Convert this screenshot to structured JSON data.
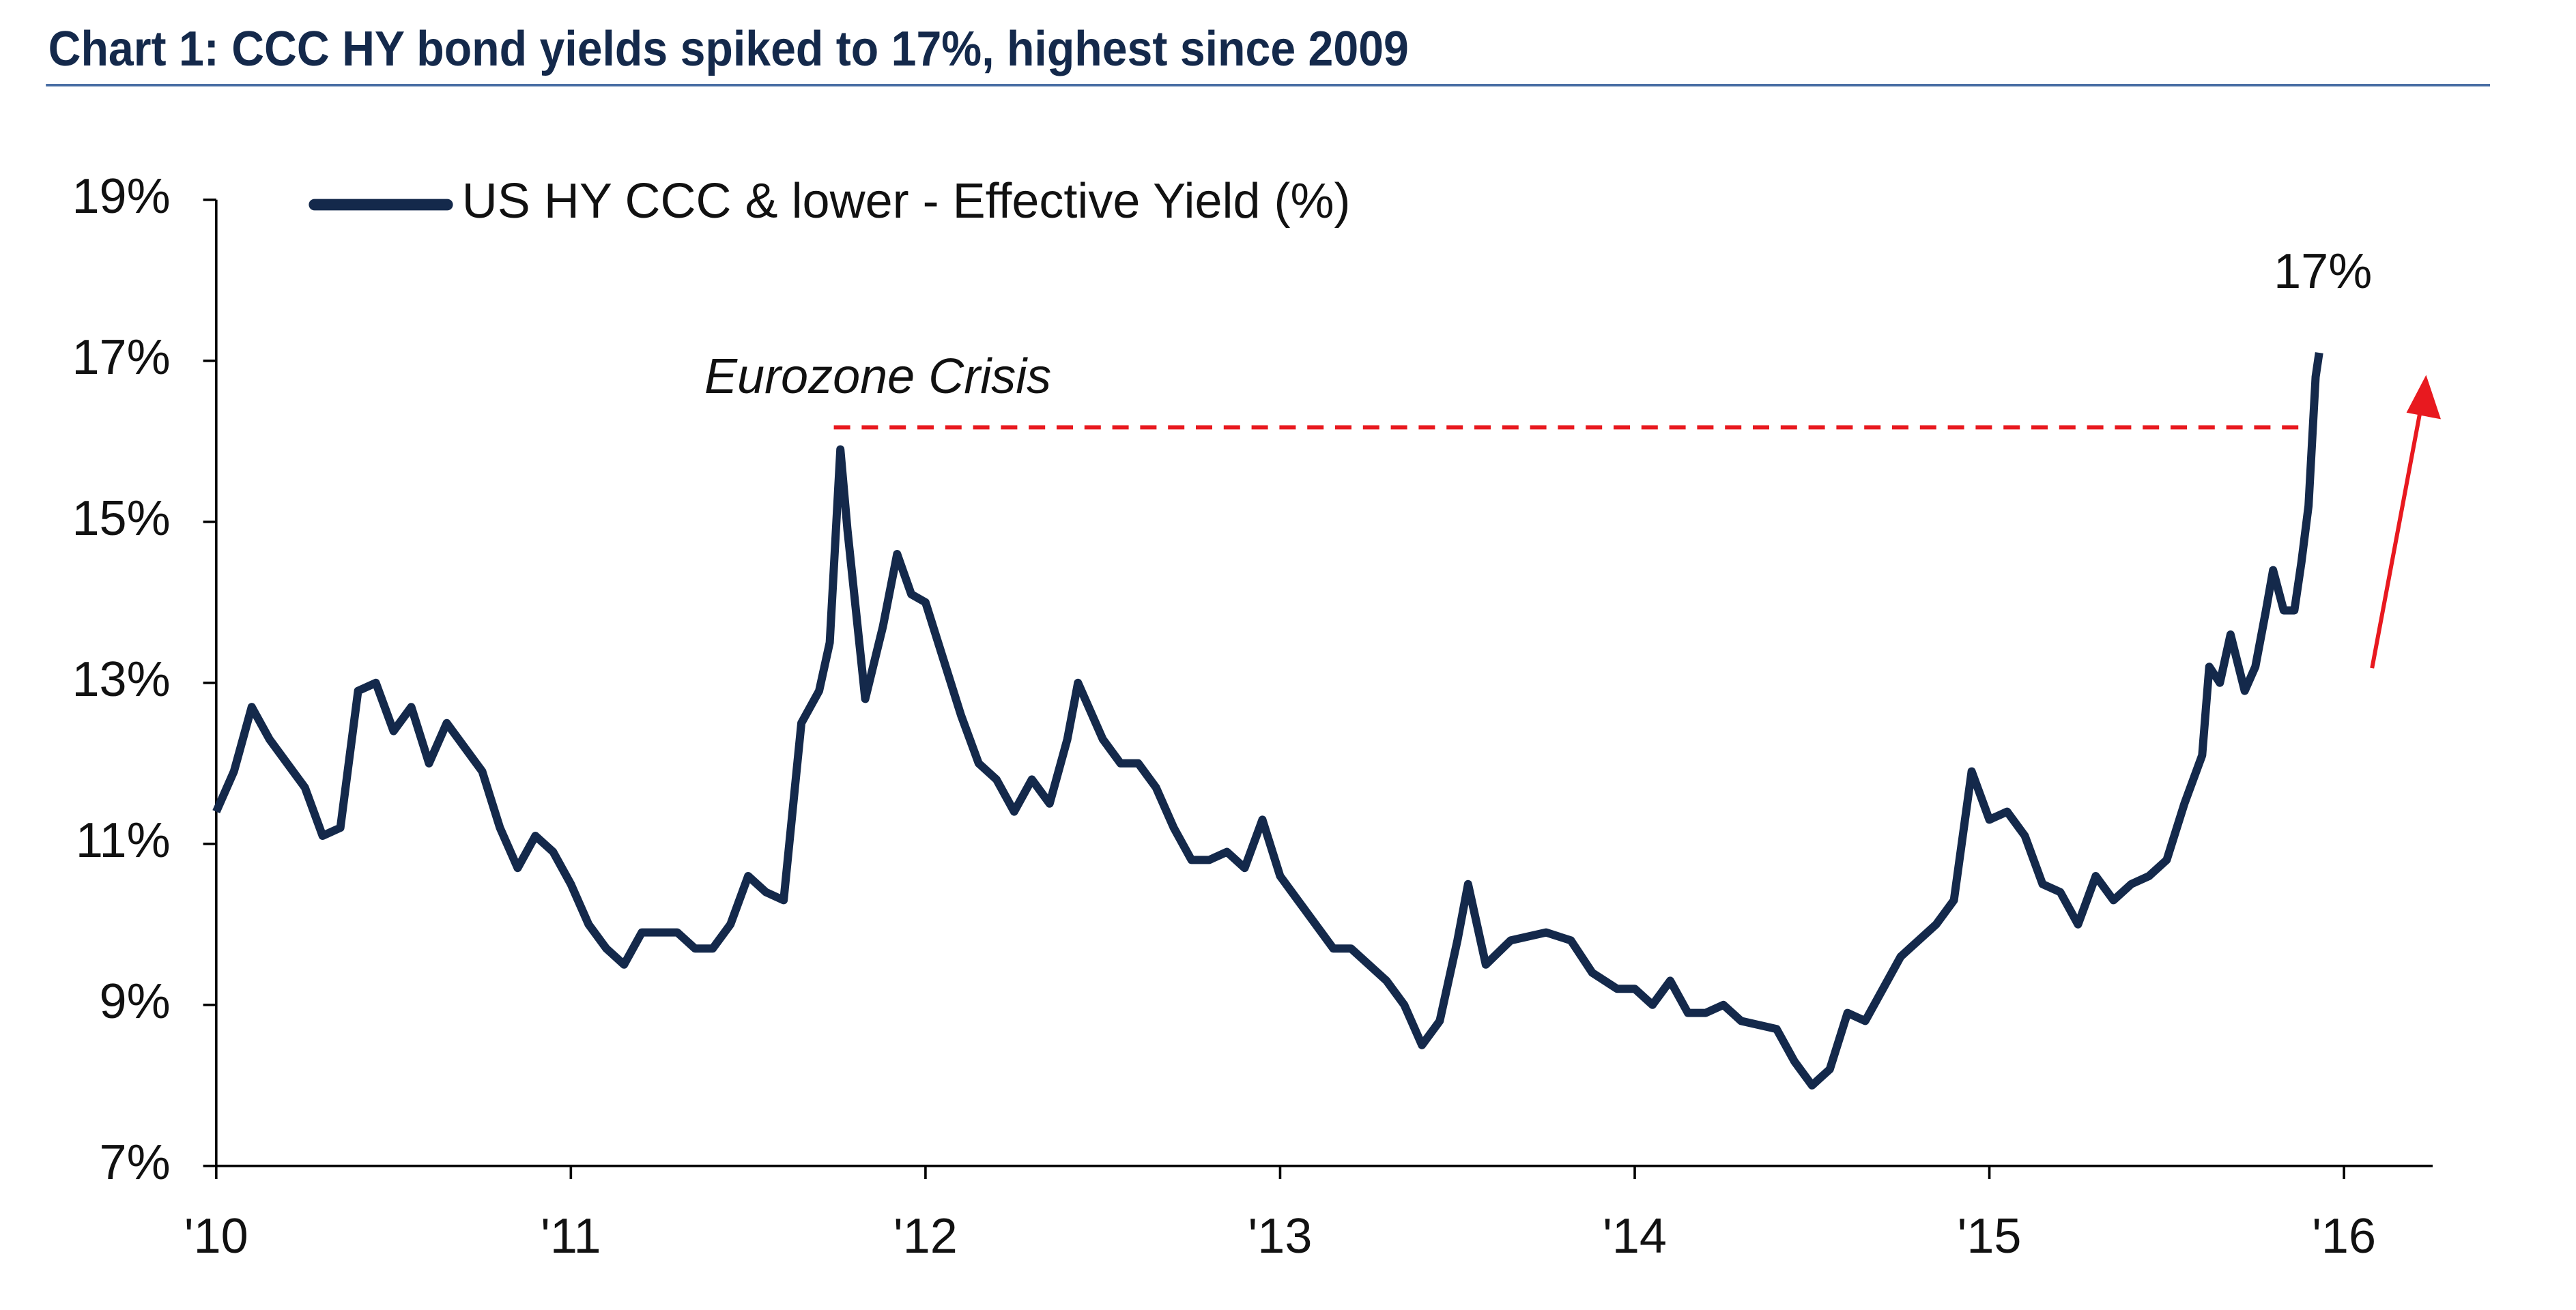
{
  "chart_data": {
    "type": "line",
    "title": "Chart 1:  CCC HY bond yields spiked to 17%, highest since 2009",
    "annotations": [
      "Eurozone Crisis",
      "17%"
    ],
    "x": [
      2010.0,
      2010.05,
      2010.1,
      2010.15,
      2010.25,
      2010.3,
      2010.35,
      2010.4,
      2010.45,
      2010.5,
      2010.55,
      2010.6,
      2010.65,
      2010.75,
      2010.8,
      2010.85,
      2010.9,
      2010.95,
      2011.0,
      2011.05,
      2011.1,
      2011.15,
      2011.2,
      2011.3,
      2011.35,
      2011.4,
      2011.45,
      2011.5,
      2011.55,
      2011.6,
      2011.65,
      2011.7,
      2011.73,
      2011.76,
      2011.78,
      2011.83,
      2011.88,
      2011.92,
      2011.96,
      2012.0,
      2012.05,
      2012.1,
      2012.15,
      2012.2,
      2012.25,
      2012.3,
      2012.35,
      2012.4,
      2012.43,
      2012.5,
      2012.55,
      2012.6,
      2012.65,
      2012.7,
      2012.75,
      2012.8,
      2012.85,
      2012.9,
      2012.95,
      2013.0,
      2013.05,
      2013.1,
      2013.15,
      2013.2,
      2013.25,
      2013.3,
      2013.35,
      2013.4,
      2013.45,
      2013.5,
      2013.53,
      2013.58,
      2013.65,
      2013.75,
      2013.82,
      2013.88,
      2013.95,
      2014.0,
      2014.05,
      2014.1,
      2014.15,
      2014.2,
      2014.25,
      2014.3,
      2014.4,
      2014.45,
      2014.5,
      2014.55,
      2014.6,
      2014.65,
      2014.7,
      2014.75,
      2014.8,
      2014.85,
      2014.9,
      2014.95,
      2015.0,
      2015.05,
      2015.1,
      2015.15,
      2015.2,
      2015.25,
      2015.3,
      2015.35,
      2015.4,
      2015.45,
      2015.5,
      2015.55,
      2015.6,
      2015.62,
      2015.65,
      2015.68,
      2015.72,
      2015.75,
      2015.78,
      2015.8,
      2015.83,
      2015.86,
      2015.88,
      2015.9,
      2015.91,
      2015.92,
      2015.93
    ],
    "series": [
      {
        "name": "US HY CCC & lower - Effective Yield (%)",
        "color": "#14294b",
        "values": [
          11.4,
          11.9,
          12.7,
          12.3,
          11.7,
          11.1,
          11.2,
          12.9,
          13.0,
          12.4,
          12.7,
          12.0,
          12.5,
          11.9,
          11.2,
          10.7,
          11.1,
          10.9,
          10.5,
          10.0,
          9.7,
          9.5,
          9.9,
          9.9,
          9.7,
          9.7,
          10.0,
          10.6,
          10.4,
          10.3,
          12.5,
          12.9,
          13.5,
          15.9,
          14.9,
          12.8,
          13.7,
          14.6,
          14.1,
          14.0,
          13.3,
          12.6,
          12.0,
          11.8,
          11.4,
          11.8,
          11.5,
          12.3,
          13.0,
          12.3,
          12.0,
          12.0,
          11.7,
          11.2,
          10.8,
          10.8,
          10.9,
          10.7,
          11.3,
          10.6,
          10.3,
          10.0,
          9.7,
          9.7,
          9.5,
          9.3,
          9.0,
          8.5,
          8.8,
          9.8,
          10.5,
          9.5,
          9.8,
          9.9,
          9.8,
          9.4,
          9.2,
          9.2,
          9.0,
          9.3,
          8.9,
          8.9,
          9.0,
          8.8,
          8.7,
          8.3,
          8.0,
          8.2,
          8.9,
          8.8,
          9.2,
          9.6,
          9.8,
          10.0,
          10.3,
          11.9,
          11.3,
          11.4,
          11.1,
          10.5,
          10.4,
          10.0,
          10.6,
          10.3,
          10.5,
          10.6,
          10.8,
          11.5,
          12.1,
          13.2,
          13.0,
          13.6,
          12.9,
          13.2,
          13.9,
          14.4,
          13.9,
          13.9,
          14.5,
          15.2,
          16.0,
          16.8,
          17.1
        ]
      }
    ],
    "xlim": [
      2010,
      2016.25
    ],
    "xticks": [
      {
        "value": 2010,
        "label": "'10"
      },
      {
        "value": 2011,
        "label": "'11"
      },
      {
        "value": 2012,
        "label": "'12"
      },
      {
        "value": 2013,
        "label": "'13"
      },
      {
        "value": 2014,
        "label": "'14"
      },
      {
        "value": 2015,
        "label": "'15"
      },
      {
        "value": 2016,
        "label": "'16"
      }
    ],
    "ylim": [
      7,
      19
    ],
    "yticks": [
      {
        "value": 7,
        "label": "7%"
      },
      {
        "value": 9,
        "label": "9%"
      },
      {
        "value": 11,
        "label": "11%"
      },
      {
        "value": 13,
        "label": "13%"
      },
      {
        "value": 15,
        "label": "15%"
      },
      {
        "value": 17,
        "label": "17%"
      },
      {
        "value": 19,
        "label": "19%"
      }
    ],
    "grid": false,
    "legend": "top-left"
  }
}
